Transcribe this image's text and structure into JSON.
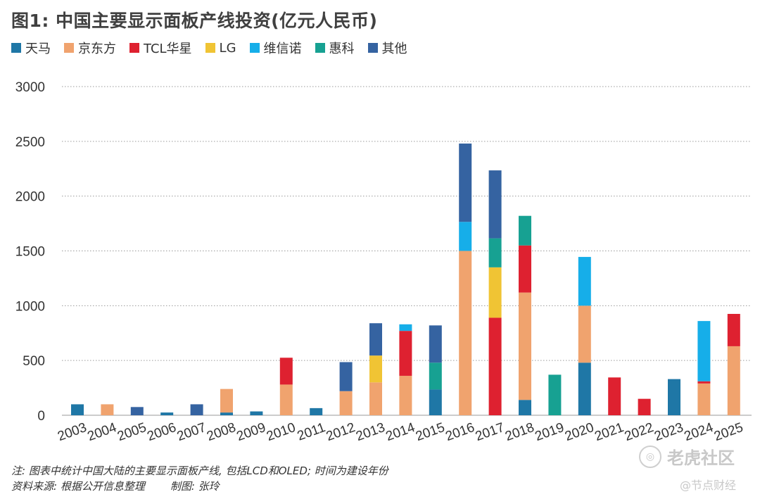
{
  "title": "图1: 中国主要显示面板产线投资(亿元人民币)",
  "legend": [
    {
      "name": "天马",
      "color": "#1f77a6"
    },
    {
      "name": "京东方",
      "color": "#f0a36e"
    },
    {
      "name": "TCL华星",
      "color": "#de2130"
    },
    {
      "name": "LG",
      "color": "#f0c434"
    },
    {
      "name": "维信诺",
      "color": "#16aee9"
    },
    {
      "name": "惠科",
      "color": "#17a192"
    },
    {
      "name": "其他",
      "color": "#3563a1"
    }
  ],
  "chart_data": {
    "type": "bar",
    "stacked": true,
    "title": "图1: 中国主要显示面板产线投资(亿元人民币)",
    "xlabel": "",
    "ylabel": "",
    "ylim": [
      0,
      3000
    ],
    "yticks": [
      0,
      500,
      1000,
      1500,
      2000,
      2500,
      3000
    ],
    "grid": true,
    "legend_position": "top-left",
    "categories": [
      "2003",
      "2004",
      "2005",
      "2006",
      "2007",
      "2008",
      "2009",
      "2010",
      "2011",
      "2012",
      "2013",
      "2014",
      "2015",
      "2016",
      "2017",
      "2018",
      "2019",
      "2020",
      "2021",
      "2022",
      "2023",
      "2024",
      "2025"
    ],
    "series": [
      {
        "name": "天马",
        "color": "#1f77a6",
        "values": [
          100,
          0,
          0,
          25,
          0,
          25,
          35,
          0,
          65,
          0,
          0,
          0,
          235,
          0,
          0,
          140,
          0,
          480,
          0,
          0,
          330,
          0,
          0
        ]
      },
      {
        "name": "京东方",
        "color": "#f0a36e",
        "values": [
          0,
          100,
          0,
          0,
          0,
          215,
          0,
          280,
          0,
          220,
          300,
          360,
          0,
          1500,
          0,
          980,
          0,
          520,
          0,
          0,
          0,
          290,
          630
        ]
      },
      {
        "name": "TCL华星",
        "color": "#de2130",
        "values": [
          0,
          0,
          0,
          0,
          0,
          0,
          0,
          245,
          0,
          0,
          0,
          410,
          0,
          0,
          890,
          430,
          0,
          0,
          345,
          150,
          0,
          20,
          295
        ]
      },
      {
        "name": "LG",
        "color": "#f0c434",
        "values": [
          0,
          0,
          0,
          0,
          0,
          0,
          0,
          0,
          0,
          0,
          245,
          0,
          0,
          0,
          460,
          0,
          0,
          0,
          0,
          0,
          0,
          0,
          0
        ]
      },
      {
        "name": "维信诺",
        "color": "#16aee9",
        "values": [
          0,
          0,
          0,
          0,
          0,
          0,
          0,
          0,
          0,
          0,
          0,
          60,
          0,
          265,
          0,
          0,
          0,
          445,
          0,
          0,
          0,
          550,
          0
        ]
      },
      {
        "name": "惠科",
        "color": "#17a192",
        "values": [
          0,
          0,
          0,
          0,
          0,
          0,
          0,
          0,
          0,
          0,
          0,
          0,
          245,
          0,
          265,
          270,
          370,
          0,
          0,
          0,
          0,
          0,
          0
        ]
      },
      {
        "name": "其他",
        "color": "#3563a1",
        "values": [
          0,
          0,
          75,
          0,
          100,
          0,
          0,
          0,
          0,
          265,
          295,
          0,
          340,
          715,
          620,
          0,
          0,
          0,
          0,
          0,
          0,
          0,
          0
        ]
      }
    ]
  },
  "notes": {
    "line1": "注: 图表中统计中国大陆的主要显示面板产线, 包括LCD和OLED; 时间为建设年份",
    "source": "资料来源: 根据公开信息整理",
    "credit": "制图: 张玲"
  },
  "watermark": {
    "main": "老虎社区",
    "sub": "@节点财经"
  }
}
